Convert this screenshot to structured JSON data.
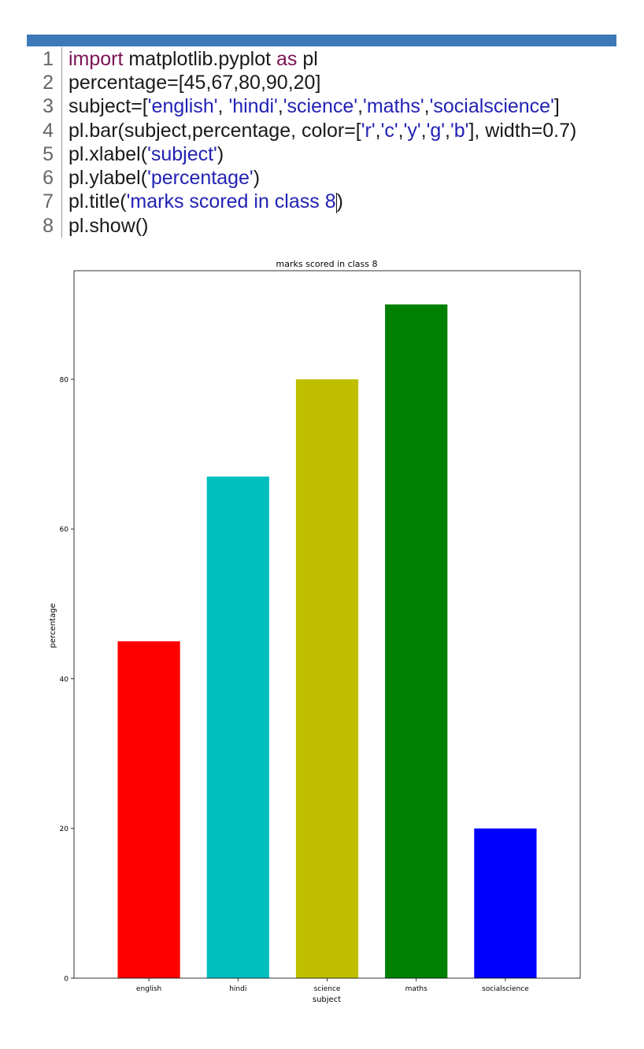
{
  "code_lines": [
    {
      "num": "1",
      "tokens": [
        {
          "t": "import",
          "c": "kw"
        },
        {
          "t": " matplotlib.pyplot ",
          "c": ""
        },
        {
          "t": "as",
          "c": "kw"
        },
        {
          "t": " pl",
          "c": ""
        }
      ]
    },
    {
      "num": "2",
      "tokens": [
        {
          "t": "percentage=[45,67,80,90,20]",
          "c": ""
        }
      ]
    },
    {
      "num": "3",
      "tokens": [
        {
          "t": "subject=[",
          "c": ""
        },
        {
          "t": "'english'",
          "c": "str"
        },
        {
          "t": ", ",
          "c": ""
        },
        {
          "t": "'hindi'",
          "c": "str"
        },
        {
          "t": ",",
          "c": ""
        },
        {
          "t": "'science'",
          "c": "str"
        },
        {
          "t": ",",
          "c": ""
        },
        {
          "t": "'maths'",
          "c": "str"
        },
        {
          "t": ",",
          "c": ""
        },
        {
          "t": "'socialscience'",
          "c": "str"
        },
        {
          "t": "]",
          "c": ""
        }
      ]
    },
    {
      "num": "4",
      "tokens": [
        {
          "t": "pl.bar(subject,percentage, color=[",
          "c": ""
        },
        {
          "t": "'r'",
          "c": "str"
        },
        {
          "t": ",",
          "c": ""
        },
        {
          "t": "'c'",
          "c": "str"
        },
        {
          "t": ",",
          "c": ""
        },
        {
          "t": "'y'",
          "c": "str"
        },
        {
          "t": ",",
          "c": ""
        },
        {
          "t": "'g'",
          "c": "str"
        },
        {
          "t": ",",
          "c": ""
        },
        {
          "t": "'b'",
          "c": "str"
        },
        {
          "t": "], width=0.7)",
          "c": ""
        }
      ]
    },
    {
      "num": "5",
      "tokens": [
        {
          "t": "pl.xlabel(",
          "c": ""
        },
        {
          "t": "'subject'",
          "c": "str"
        },
        {
          "t": ")",
          "c": ""
        }
      ]
    },
    {
      "num": "6",
      "tokens": [
        {
          "t": "pl.ylabel(",
          "c": ""
        },
        {
          "t": "'percentage'",
          "c": "str"
        },
        {
          "t": ")",
          "c": ""
        }
      ]
    },
    {
      "num": "7",
      "tokens": [
        {
          "t": "pl.title(",
          "c": ""
        },
        {
          "t": "'marks scored in class 8",
          "c": "str"
        },
        {
          "t": "|",
          "c": "caret"
        },
        {
          "t": ")",
          "c": ""
        }
      ]
    },
    {
      "num": "8",
      "tokens": [
        {
          "t": "pl.show()",
          "c": ""
        }
      ]
    }
  ],
  "colors": {
    "topbar": "#3d79b8",
    "keyword": "#7b1454",
    "string": "#2222b5"
  },
  "chart_data": {
    "type": "bar",
    "title": "marks scored in class 8",
    "xlabel": "subject",
    "ylabel": "percentage",
    "categories": [
      "english",
      "hindi",
      "science",
      "maths",
      "socialscience"
    ],
    "values": [
      45,
      67,
      80,
      90,
      20
    ],
    "colors": [
      "#ff0000",
      "#00bfbf",
      "#bfbf00",
      "#008000",
      "#0000ff"
    ],
    "bar_width": 0.7,
    "ylim": [
      0,
      94.5
    ],
    "yticks": [
      0,
      20,
      40,
      60,
      80
    ],
    "grid": false
  }
}
